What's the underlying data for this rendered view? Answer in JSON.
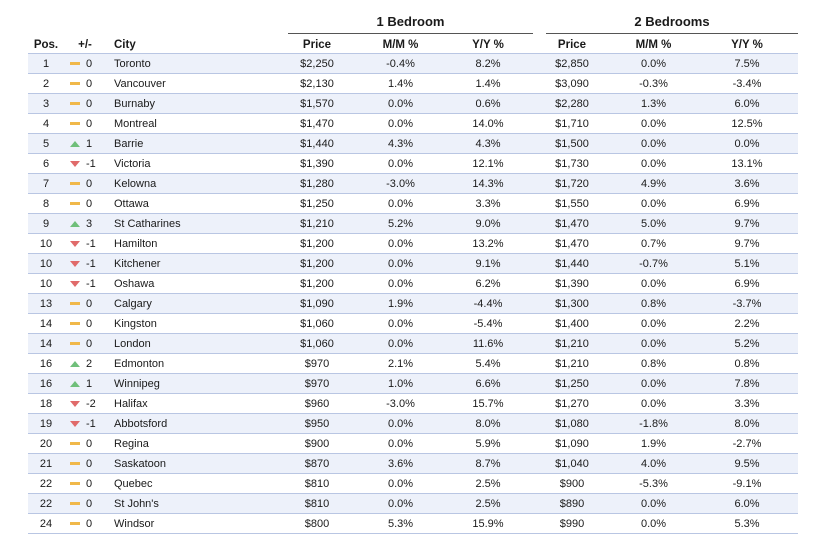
{
  "groups": {
    "one_bedroom": "1 Bedroom",
    "two_bedrooms": "2 Bedrooms"
  },
  "headers": {
    "pos": "Pos.",
    "change": "+/-",
    "city": "City",
    "price1": "Price",
    "mm1": "M/M %",
    "yy1": "Y/Y %",
    "price2": "Price",
    "mm2": "M/M %",
    "yy2": "Y/Y %"
  },
  "colors": {
    "flat": "#f0b84a",
    "up": "#6fbf7a",
    "down": "#e06a6a",
    "stripe": "#edf1fa"
  },
  "rows": [
    {
      "pos": "1",
      "trend": "flat",
      "change": "0",
      "city": "Toronto",
      "price1": "$2,250",
      "mm1": "-0.4%",
      "yy1": "8.2%",
      "price2": "$2,850",
      "mm2": "0.0%",
      "yy2": "7.5%"
    },
    {
      "pos": "2",
      "trend": "flat",
      "change": "0",
      "city": "Vancouver",
      "price1": "$2,130",
      "mm1": "1.4%",
      "yy1": "1.4%",
      "price2": "$3,090",
      "mm2": "-0.3%",
      "yy2": "-3.4%"
    },
    {
      "pos": "3",
      "trend": "flat",
      "change": "0",
      "city": "Burnaby",
      "price1": "$1,570",
      "mm1": "0.0%",
      "yy1": "0.6%",
      "price2": "$2,280",
      "mm2": "1.3%",
      "yy2": "6.0%"
    },
    {
      "pos": "4",
      "trend": "flat",
      "change": "0",
      "city": "Montreal",
      "price1": "$1,470",
      "mm1": "0.0%",
      "yy1": "14.0%",
      "price2": "$1,710",
      "mm2": "0.0%",
      "yy2": "12.5%"
    },
    {
      "pos": "5",
      "trend": "up",
      "change": "1",
      "city": "Barrie",
      "price1": "$1,440",
      "mm1": "4.3%",
      "yy1": "4.3%",
      "price2": "$1,500",
      "mm2": "0.0%",
      "yy2": "0.0%"
    },
    {
      "pos": "6",
      "trend": "down",
      "change": "-1",
      "city": "Victoria",
      "price1": "$1,390",
      "mm1": "0.0%",
      "yy1": "12.1%",
      "price2": "$1,730",
      "mm2": "0.0%",
      "yy2": "13.1%"
    },
    {
      "pos": "7",
      "trend": "flat",
      "change": "0",
      "city": "Kelowna",
      "price1": "$1,280",
      "mm1": "-3.0%",
      "yy1": "14.3%",
      "price2": "$1,720",
      "mm2": "4.9%",
      "yy2": "3.6%"
    },
    {
      "pos": "8",
      "trend": "flat",
      "change": "0",
      "city": "Ottawa",
      "price1": "$1,250",
      "mm1": "0.0%",
      "yy1": "3.3%",
      "price2": "$1,550",
      "mm2": "0.0%",
      "yy2": "6.9%"
    },
    {
      "pos": "9",
      "trend": "up",
      "change": "3",
      "city": "St Catharines",
      "price1": "$1,210",
      "mm1": "5.2%",
      "yy1": "9.0%",
      "price2": "$1,470",
      "mm2": "5.0%",
      "yy2": "9.7%"
    },
    {
      "pos": "10",
      "trend": "down",
      "change": "-1",
      "city": "Hamilton",
      "price1": "$1,200",
      "mm1": "0.0%",
      "yy1": "13.2%",
      "price2": "$1,470",
      "mm2": "0.7%",
      "yy2": "9.7%"
    },
    {
      "pos": "10",
      "trend": "down",
      "change": "-1",
      "city": "Kitchener",
      "price1": "$1,200",
      "mm1": "0.0%",
      "yy1": "9.1%",
      "price2": "$1,440",
      "mm2": "-0.7%",
      "yy2": "5.1%"
    },
    {
      "pos": "10",
      "trend": "down",
      "change": "-1",
      "city": "Oshawa",
      "price1": "$1,200",
      "mm1": "0.0%",
      "yy1": "6.2%",
      "price2": "$1,390",
      "mm2": "0.0%",
      "yy2": "6.9%"
    },
    {
      "pos": "13",
      "trend": "flat",
      "change": "0",
      "city": "Calgary",
      "price1": "$1,090",
      "mm1": "1.9%",
      "yy1": "-4.4%",
      "price2": "$1,300",
      "mm2": "0.8%",
      "yy2": "-3.7%"
    },
    {
      "pos": "14",
      "trend": "flat",
      "change": "0",
      "city": "Kingston",
      "price1": "$1,060",
      "mm1": "0.0%",
      "yy1": "-5.4%",
      "price2": "$1,400",
      "mm2": "0.0%",
      "yy2": "2.2%"
    },
    {
      "pos": "14",
      "trend": "flat",
      "change": "0",
      "city": "London",
      "price1": "$1,060",
      "mm1": "0.0%",
      "yy1": "11.6%",
      "price2": "$1,210",
      "mm2": "0.0%",
      "yy2": "5.2%"
    },
    {
      "pos": "16",
      "trend": "up",
      "change": "2",
      "city": "Edmonton",
      "price1": "$970",
      "mm1": "2.1%",
      "yy1": "5.4%",
      "price2": "$1,210",
      "mm2": "0.8%",
      "yy2": "0.8%"
    },
    {
      "pos": "16",
      "trend": "up",
      "change": "1",
      "city": "Winnipeg",
      "price1": "$970",
      "mm1": "1.0%",
      "yy1": "6.6%",
      "price2": "$1,250",
      "mm2": "0.0%",
      "yy2": "7.8%"
    },
    {
      "pos": "18",
      "trend": "down",
      "change": "-2",
      "city": "Halifax",
      "price1": "$960",
      "mm1": "-3.0%",
      "yy1": "15.7%",
      "price2": "$1,270",
      "mm2": "0.0%",
      "yy2": "3.3%"
    },
    {
      "pos": "19",
      "trend": "down",
      "change": "-1",
      "city": "Abbotsford",
      "price1": "$950",
      "mm1": "0.0%",
      "yy1": "8.0%",
      "price2": "$1,080",
      "mm2": "-1.8%",
      "yy2": "8.0%"
    },
    {
      "pos": "20",
      "trend": "flat",
      "change": "0",
      "city": "Regina",
      "price1": "$900",
      "mm1": "0.0%",
      "yy1": "5.9%",
      "price2": "$1,090",
      "mm2": "1.9%",
      "yy2": "-2.7%"
    },
    {
      "pos": "21",
      "trend": "flat",
      "change": "0",
      "city": "Saskatoon",
      "price1": "$870",
      "mm1": "3.6%",
      "yy1": "8.7%",
      "price2": "$1,040",
      "mm2": "4.0%",
      "yy2": "9.5%"
    },
    {
      "pos": "22",
      "trend": "flat",
      "change": "0",
      "city": "Quebec",
      "price1": "$810",
      "mm1": "0.0%",
      "yy1": "2.5%",
      "price2": "$900",
      "mm2": "-5.3%",
      "yy2": "-9.1%"
    },
    {
      "pos": "22",
      "trend": "flat",
      "change": "0",
      "city": "St John's",
      "price1": "$810",
      "mm1": "0.0%",
      "yy1": "2.5%",
      "price2": "$890",
      "mm2": "0.0%",
      "yy2": "6.0%"
    },
    {
      "pos": "24",
      "trend": "flat",
      "change": "0",
      "city": "Windsor",
      "price1": "$800",
      "mm1": "5.3%",
      "yy1": "15.9%",
      "price2": "$990",
      "mm2": "0.0%",
      "yy2": "5.3%"
    }
  ]
}
